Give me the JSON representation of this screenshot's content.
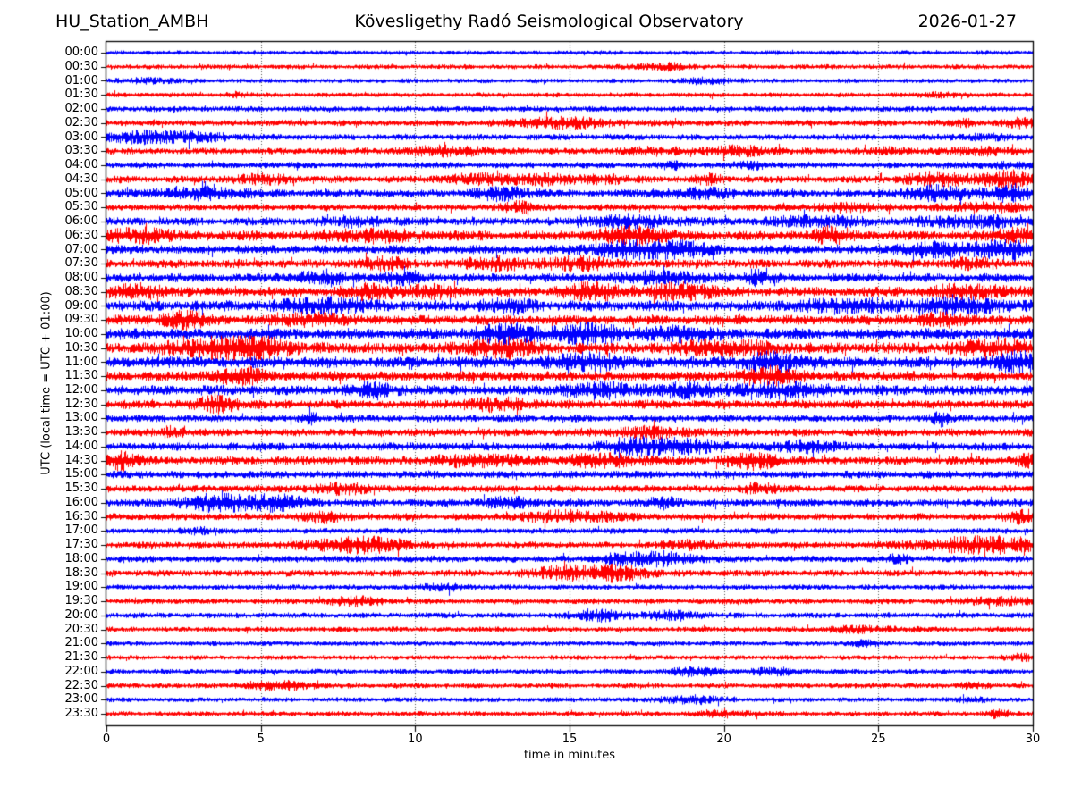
{
  "header": {
    "station": "HU_Station_AMBH",
    "observatory": "Kövesligethy Radó Seismological Observatory",
    "date": "2026-01-27"
  },
  "axes": {
    "x_label": "time in minutes",
    "y_label": "UTC (local time = UTC + 01:00)",
    "x_ticks": [
      0,
      5,
      10,
      15,
      20,
      25,
      30
    ],
    "x_range": [
      0,
      30
    ],
    "grid_minutes": [
      5,
      10,
      15,
      20,
      25
    ]
  },
  "colors": {
    "blue": "#0000ff",
    "red": "#ff0000",
    "grid": "#555555",
    "frame": "#000000"
  },
  "chart_data": {
    "type": "line",
    "subtype": "helicorder-dayplot",
    "title": "HU_Station_AMBH — Kövesligethy Radó Seismological Observatory — 2026-01-27",
    "xlabel": "time in minutes",
    "ylabel": "UTC (local time = UTC + 01:00)",
    "interval_minutes": 30,
    "x_range": [
      0,
      30
    ],
    "rows": [
      {
        "label": "00:00",
        "color": "blue",
        "base": 1.5,
        "bursts": []
      },
      {
        "label": "00:30",
        "color": "red",
        "base": 1.7,
        "bursts": [
          [
            18,
            1.0,
            2.6
          ]
        ]
      },
      {
        "label": "01:00",
        "color": "blue",
        "base": 1.6,
        "bursts": [
          [
            1.2,
            0.8,
            2.2
          ],
          [
            19.5,
            0.9,
            2.4
          ]
        ]
      },
      {
        "label": "01:30",
        "color": "red",
        "base": 1.7,
        "bursts": [
          [
            4.2,
            0.3,
            2.6
          ],
          [
            27,
            0.8,
            1.6
          ]
        ]
      },
      {
        "label": "02:00",
        "color": "blue",
        "base": 2.1,
        "bursts": []
      },
      {
        "label": "02:30",
        "color": "red",
        "base": 2.3,
        "bursts": [
          [
            14.8,
            1.6,
            4.4
          ],
          [
            27.8,
            0.4,
            2.2
          ],
          [
            29.6,
            0.6,
            3.2
          ]
        ]
      },
      {
        "label": "03:00",
        "color": "blue",
        "base": 2.3,
        "bursts": [
          [
            1.3,
            1.3,
            5.2
          ],
          [
            3.2,
            1.0,
            2.6
          ],
          [
            28.5,
            1.5,
            1.2
          ]
        ]
      },
      {
        "label": "03:30",
        "color": "red",
        "base": 2.5,
        "bursts": [
          [
            11,
            1.4,
            3.4
          ],
          [
            17.8,
            1.2,
            2.2
          ],
          [
            20.6,
            1.0,
            3.6
          ],
          [
            25.5,
            0.7,
            2.0
          ],
          [
            28.4,
            1.0,
            2.6
          ]
        ]
      },
      {
        "label": "04:00",
        "color": "blue",
        "base": 2.3,
        "bursts": [
          [
            18.3,
            0.25,
            4.2
          ],
          [
            21,
            0.6,
            2.4
          ],
          [
            29,
            1.0,
            1.6
          ]
        ]
      },
      {
        "label": "04:30",
        "color": "red",
        "base": 2.7,
        "bursts": [
          [
            5,
            1.0,
            3.2
          ],
          [
            12,
            1.2,
            3.4
          ],
          [
            14,
            0.9,
            3.8
          ],
          [
            16,
            0.9,
            3.0
          ],
          [
            19.5,
            0.35,
            4.6
          ],
          [
            27,
            1.2,
            5.0
          ],
          [
            29.3,
            0.9,
            6.0
          ]
        ]
      },
      {
        "label": "05:00",
        "color": "blue",
        "base": 2.9,
        "bursts": [
          [
            3,
            1.5,
            4.2
          ],
          [
            12.8,
            0.9,
            5.0
          ],
          [
            19,
            1.2,
            3.8
          ],
          [
            27,
            1.2,
            5.2
          ],
          [
            29.4,
            0.8,
            6.2
          ]
        ]
      },
      {
        "label": "05:30",
        "color": "red",
        "base": 2.5,
        "bursts": [
          [
            13.3,
            0.5,
            4.4
          ],
          [
            24,
            1.2,
            2.6
          ],
          [
            28.5,
            1.4,
            3.2
          ]
        ]
      },
      {
        "label": "06:00",
        "color": "blue",
        "base": 3.1,
        "bursts": [
          [
            8,
            1.0,
            3.2
          ],
          [
            17,
            1.4,
            4.2
          ],
          [
            23,
            1.4,
            3.8
          ],
          [
            28,
            1.8,
            4.0
          ]
        ]
      },
      {
        "label": "06:30",
        "color": "red",
        "base": 3.8,
        "bursts": [
          [
            1,
            1.0,
            4.8
          ],
          [
            8.5,
            1.4,
            4.0
          ],
          [
            17,
            1.1,
            6.4
          ],
          [
            23.5,
            0.6,
            5.6
          ],
          [
            29.6,
            0.8,
            5.2
          ]
        ]
      },
      {
        "label": "07:00",
        "color": "blue",
        "base": 3.5,
        "bursts": [
          [
            17,
            1.3,
            6.0
          ],
          [
            18.6,
            0.9,
            5.2
          ],
          [
            27,
            1.4,
            5.0
          ],
          [
            29.2,
            0.9,
            6.2
          ]
        ]
      },
      {
        "label": "07:30",
        "color": "red",
        "base": 3.3,
        "bursts": [
          [
            9,
            0.8,
            4.2
          ],
          [
            12.6,
            0.9,
            5.2
          ],
          [
            15.2,
            0.9,
            5.2
          ],
          [
            28,
            0.8,
            3.4
          ]
        ]
      },
      {
        "label": "08:00",
        "color": "blue",
        "base": 3.3,
        "bursts": [
          [
            7,
            0.8,
            5.8
          ],
          [
            9.6,
            0.6,
            4.2
          ],
          [
            18,
            1.4,
            4.0
          ],
          [
            21,
            0.5,
            5.0
          ]
        ]
      },
      {
        "label": "08:30",
        "color": "red",
        "base": 3.7,
        "bursts": [
          [
            1,
            1.0,
            4.8
          ],
          [
            8.6,
            1.0,
            5.0
          ],
          [
            10.6,
            0.8,
            4.2
          ],
          [
            15.8,
            1.0,
            6.2
          ],
          [
            18.6,
            1.0,
            6.0
          ],
          [
            28,
            1.6,
            4.2
          ]
        ]
      },
      {
        "label": "09:00",
        "color": "blue",
        "base": 4.1,
        "bursts": [
          [
            7,
            1.4,
            5.0
          ],
          [
            13,
            1.0,
            4.2
          ],
          [
            24,
            1.5,
            5.0
          ],
          [
            27.6,
            1.4,
            6.0
          ]
        ]
      },
      {
        "label": "09:30",
        "color": "red",
        "base": 3.7,
        "bursts": [
          [
            2.5,
            0.7,
            7.0
          ],
          [
            6.6,
            1.0,
            4.2
          ],
          [
            27,
            1.0,
            4.2
          ]
        ]
      },
      {
        "label": "10:00",
        "color": "blue",
        "base": 4.4,
        "bursts": [
          [
            13,
            1.1,
            6.0
          ],
          [
            15.6,
            1.1,
            7.0
          ],
          [
            18.6,
            1.0,
            5.0
          ]
        ]
      },
      {
        "label": "10:30",
        "color": "red",
        "base": 4.4,
        "bursts": [
          [
            3.6,
            1.4,
            7.0
          ],
          [
            5,
            1.0,
            6.2
          ],
          [
            12.8,
            1.0,
            7.0
          ],
          [
            20,
            1.5,
            5.0
          ],
          [
            29,
            1.4,
            6.0
          ]
        ]
      },
      {
        "label": "11:00",
        "color": "blue",
        "base": 4.4,
        "bursts": [
          [
            15.6,
            1.0,
            6.0
          ],
          [
            21.6,
            1.2,
            6.2
          ],
          [
            29.5,
            0.7,
            8.0
          ]
        ]
      },
      {
        "label": "11:30",
        "color": "red",
        "base": 3.9,
        "bursts": [
          [
            4.3,
            0.8,
            6.2
          ],
          [
            21.4,
            1.0,
            6.2
          ]
        ]
      },
      {
        "label": "12:00",
        "color": "blue",
        "base": 3.9,
        "bursts": [
          [
            8.6,
            0.8,
            5.2
          ],
          [
            16,
            1.2,
            5.2
          ],
          [
            19,
            1.0,
            5.2
          ],
          [
            22,
            1.4,
            5.2
          ]
        ]
      },
      {
        "label": "12:30",
        "color": "red",
        "base": 3.3,
        "bursts": [
          [
            3.6,
            0.7,
            6.2
          ],
          [
            12.6,
            1.2,
            4.2
          ]
        ]
      },
      {
        "label": "13:00",
        "color": "blue",
        "base": 2.7,
        "bursts": [
          [
            6.6,
            0.3,
            4.4
          ],
          [
            27,
            0.3,
            5.2
          ]
        ]
      },
      {
        "label": "13:30",
        "color": "red",
        "base": 2.9,
        "bursts": [
          [
            2.1,
            0.4,
            4.4
          ],
          [
            17.6,
            1.5,
            3.4
          ]
        ]
      },
      {
        "label": "14:00",
        "color": "blue",
        "base": 3.1,
        "bursts": [
          [
            17,
            1.0,
            5.2
          ],
          [
            18.6,
            1.4,
            5.2
          ],
          [
            22.6,
            1.0,
            4.2
          ]
        ]
      },
      {
        "label": "14:30",
        "color": "red",
        "base": 3.3,
        "bursts": [
          [
            0.3,
            0.8,
            7.0
          ],
          [
            12,
            1.4,
            4.2
          ],
          [
            16,
            1.4,
            4.2
          ],
          [
            20.9,
            0.9,
            6.0
          ],
          [
            29.8,
            0.4,
            4.4
          ]
        ]
      },
      {
        "label": "15:00",
        "color": "blue",
        "base": 2.9,
        "bursts": []
      },
      {
        "label": "15:30",
        "color": "red",
        "base": 2.7,
        "bursts": [
          [
            7.6,
            1.0,
            3.4
          ],
          [
            21.1,
            0.5,
            4.4
          ]
        ]
      },
      {
        "label": "16:00",
        "color": "blue",
        "base": 2.9,
        "bursts": [
          [
            3.6,
            1.3,
            6.2
          ],
          [
            5.6,
            1.0,
            5.2
          ],
          [
            13,
            1.0,
            3.4
          ],
          [
            18,
            0.5,
            4.2
          ]
        ]
      },
      {
        "label": "16:30",
        "color": "red",
        "base": 2.7,
        "bursts": [
          [
            7,
            0.7,
            3.4
          ],
          [
            15,
            1.5,
            4.4
          ],
          [
            29.7,
            0.5,
            5.2
          ]
        ]
      },
      {
        "label": "17:00",
        "color": "blue",
        "base": 2.1,
        "bursts": [
          [
            3,
            0.5,
            2.6
          ]
        ]
      },
      {
        "label": "17:30",
        "color": "red",
        "base": 2.5,
        "bursts": [
          [
            7.6,
            1.4,
            4.4
          ],
          [
            8.9,
            1.0,
            4.2
          ],
          [
            19,
            0.8,
            3.4
          ],
          [
            27.6,
            1.9,
            4.4
          ],
          [
            29.2,
            1.4,
            4.2
          ]
        ]
      },
      {
        "label": "18:00",
        "color": "blue",
        "base": 2.5,
        "bursts": [
          [
            16.6,
            0.6,
            3.4
          ],
          [
            18,
            1.2,
            5.2
          ],
          [
            25.6,
            0.4,
            3.4
          ]
        ]
      },
      {
        "label": "18:30",
        "color": "red",
        "base": 2.5,
        "bursts": [
          [
            15,
            1.2,
            6.2
          ],
          [
            16.6,
            1.0,
            5.2
          ]
        ]
      },
      {
        "label": "19:00",
        "color": "blue",
        "base": 1.9,
        "bursts": [
          [
            11,
            0.8,
            2.4
          ]
        ]
      },
      {
        "label": "19:30",
        "color": "red",
        "base": 2.1,
        "bursts": [
          [
            8,
            1.0,
            3.2
          ],
          [
            28.9,
            1.2,
            2.8
          ]
        ]
      },
      {
        "label": "20:00",
        "color": "blue",
        "base": 2.1,
        "bursts": [
          [
            15.9,
            1.0,
            4.4
          ],
          [
            18.4,
            1.0,
            3.4
          ]
        ]
      },
      {
        "label": "20:30",
        "color": "red",
        "base": 1.9,
        "bursts": [
          [
            24.6,
            1.4,
            2.2
          ]
        ]
      },
      {
        "label": "21:00",
        "color": "blue",
        "base": 1.7,
        "bursts": [
          [
            24.6,
            0.5,
            2.4
          ]
        ]
      },
      {
        "label": "21:30",
        "color": "red",
        "base": 1.7,
        "bursts": [
          [
            29.6,
            0.5,
            2.4
          ]
        ]
      },
      {
        "label": "22:00",
        "color": "blue",
        "base": 1.9,
        "bursts": [
          [
            19,
            0.8,
            3.2
          ],
          [
            21.6,
            0.8,
            2.4
          ]
        ]
      },
      {
        "label": "22:30",
        "color": "red",
        "base": 1.9,
        "bursts": [
          [
            5.6,
            1.2,
            3.4
          ],
          [
            28,
            0.5,
            2.4
          ]
        ]
      },
      {
        "label": "23:00",
        "color": "blue",
        "base": 1.7,
        "bursts": [
          [
            18.9,
            1.0,
            3.4
          ],
          [
            28,
            0.5,
            2.4
          ]
        ]
      },
      {
        "label": "23:30",
        "color": "red",
        "base": 1.8,
        "bursts": [
          [
            20,
            1.0,
            2.4
          ],
          [
            28.9,
            0.3,
            3.6
          ]
        ]
      }
    ]
  }
}
